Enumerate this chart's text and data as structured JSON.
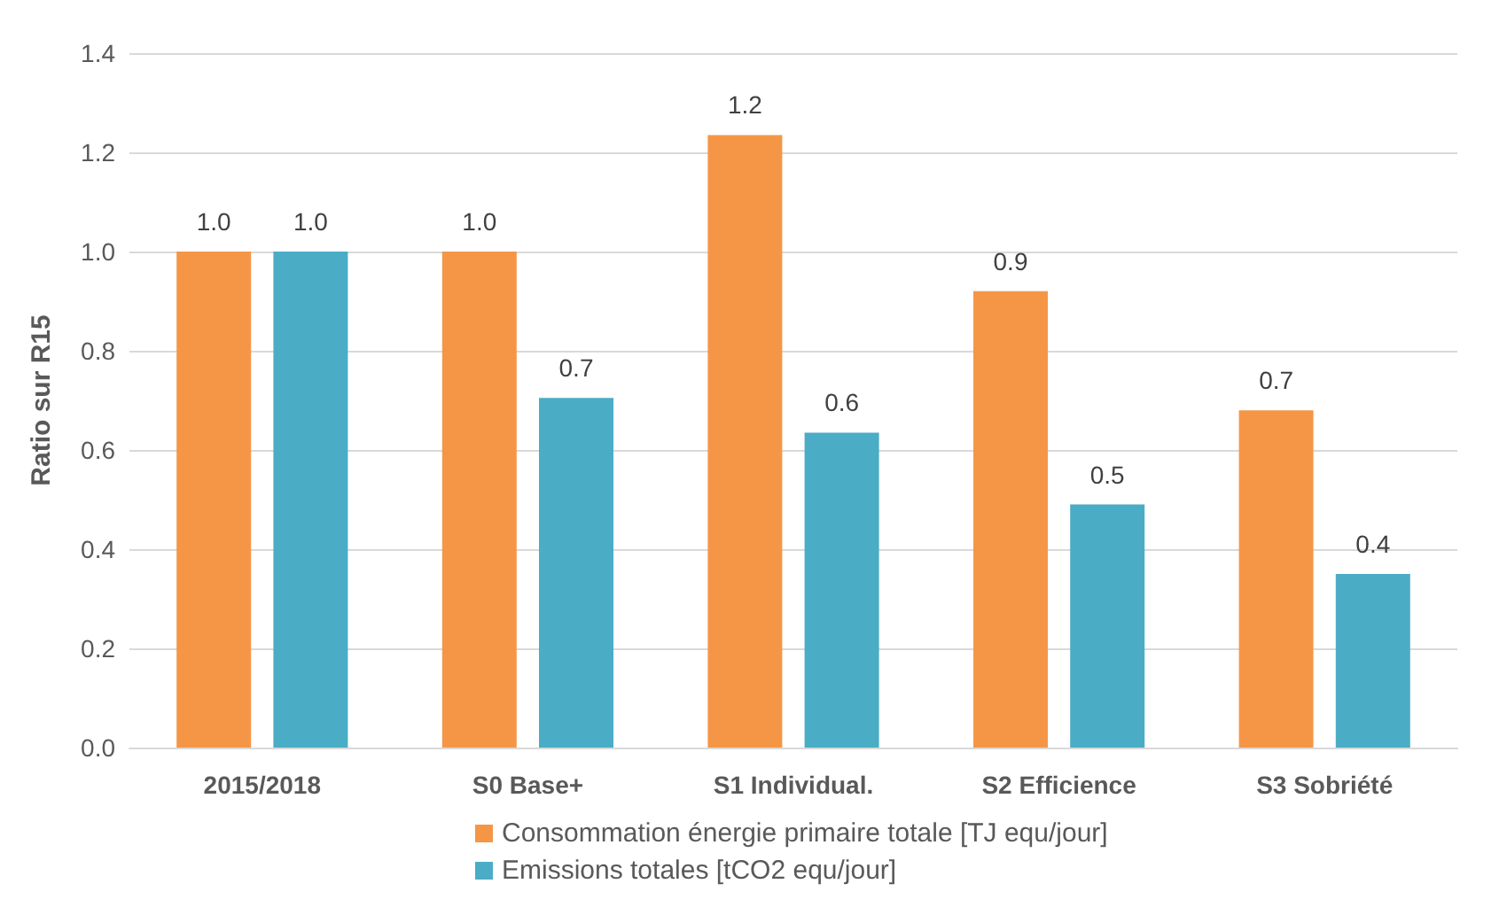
{
  "chart_data": {
    "type": "bar",
    "ylabel": "Ratio sur R15",
    "categories": [
      "2015/2018",
      "S0 Base+",
      "S1 Individual.",
      "S2 Efficience",
      "S3 Sobriété"
    ],
    "series": [
      {
        "name": "Consommation énergie primaire totale [TJ equ/jour]",
        "color": "#f59647",
        "values": [
          1.0,
          1.0,
          1.235,
          0.92,
          0.68
        ],
        "value_labels": [
          "1.0",
          "1.0",
          "1.2",
          "0.9",
          "0.7"
        ]
      },
      {
        "name": "Emissions totales [tCO2 equ/jour]",
        "color": "#4bacc6",
        "values": [
          1.0,
          0.705,
          0.635,
          0.49,
          0.35
        ],
        "value_labels": [
          "1.0",
          "0.7",
          "0.6",
          "0.5",
          "0.4"
        ]
      }
    ],
    "ylim": [
      0,
      1.4
    ],
    "yticks": [
      {
        "value": 0,
        "label": "0.0"
      },
      0.2,
      0.4,
      0.6,
      0.8,
      {
        "value": 1,
        "label": "1.0"
      },
      1.2,
      1.4
    ],
    "grid": "y",
    "legend": "bottom"
  }
}
